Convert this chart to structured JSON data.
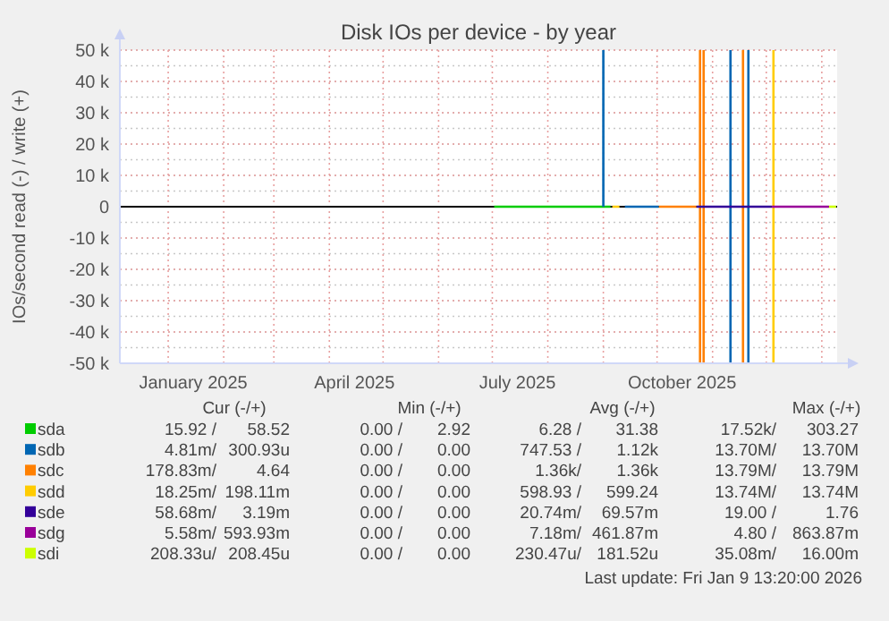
{
  "chart_data": {
    "type": "line",
    "title": "Disk IOs per device - by year",
    "ylabel": "IOs/second read (-) / write (+)",
    "xlim": [
      "2024-12-05",
      "2026-01-09T13:20"
    ],
    "xticks": [
      {
        "value": "2025-01-15",
        "label": "January 2025"
      },
      {
        "value": "2025-04-15",
        "label": "April 2025"
      },
      {
        "value": "2025-07-15",
        "label": "July 2025"
      },
      {
        "value": "2025-10-15",
        "label": "October 2025"
      }
    ],
    "ylim": [
      -50000,
      50000
    ],
    "yticks": [
      {
        "value": -50000,
        "label": "-50 k"
      },
      {
        "value": -40000,
        "label": "-40 k"
      },
      {
        "value": -30000,
        "label": "-30 k"
      },
      {
        "value": -20000,
        "label": "-20 k"
      },
      {
        "value": -10000,
        "label": "-10 k"
      },
      0,
      {
        "value": 10000,
        "label": "10 k"
      },
      {
        "value": 20000,
        "label": "20 k"
      },
      {
        "value": 30000,
        "label": "30 k"
      },
      {
        "value": 40000,
        "label": "40 k"
      },
      {
        "value": 50000,
        "label": "50 k"
      }
    ],
    "grid": true,
    "legend": "bottom",
    "marker": "none",
    "line_style": "solid",
    "series": [
      {
        "name": "sda",
        "color": "#00cc00",
        "x": [
          "2025-07-02",
          "2025-09-05"
        ],
        "values": [
          0,
          0
        ]
      },
      {
        "name": "sdb",
        "color": "#0066b3",
        "x": [
          "2025-09-01",
          "2025-09-01",
          "2025-09-05",
          "2025-09-13",
          "2025-10-02",
          "2025-10-05",
          "2025-11-11",
          "2025-11-11",
          "2025-11-15",
          "2025-11-21",
          "2025-11-21"
        ],
        "values": [
          0,
          50000,
          null,
          0,
          0,
          null,
          50000,
          -50000,
          null,
          50000,
          -50000
        ]
      },
      {
        "name": "sdc",
        "color": "#ff8000",
        "x": [
          "2025-10-02",
          "2025-10-23",
          "2025-10-24",
          "2025-10-25",
          "2025-10-25",
          "2025-10-26",
          "2025-10-27",
          "2025-10-27",
          "2025-11-01",
          "2025-11-18",
          "2025-11-18"
        ],
        "values": [
          0,
          0,
          null,
          50000,
          -50000,
          null,
          50000,
          -50000,
          null,
          50000,
          -50000
        ]
      },
      {
        "name": "sdd",
        "color": "#ffcc00",
        "x": [
          "2025-09-06",
          "2025-09-10",
          "2025-09-20",
          "2025-12-05",
          "2025-12-05"
        ],
        "values": [
          0,
          0,
          null,
          50000,
          -50000
        ]
      },
      {
        "name": "sde",
        "color": "#330099",
        "x": [
          "2025-10-23",
          "2025-12-04"
        ],
        "values": [
          0,
          0
        ]
      },
      {
        "name": "sdg",
        "color": "#990099",
        "x": [
          "2025-12-04",
          "2026-01-05"
        ],
        "values": [
          0,
          0
        ]
      },
      {
        "name": "sdi",
        "color": "#ccff00",
        "x": [
          "2026-01-05",
          "2026-01-09"
        ],
        "values": [
          0,
          0
        ]
      }
    ],
    "annotations": [
      "Cur (-/+)",
      "Min (-/+)",
      "Avg (-/+)",
      "Max (-/+)",
      "15.92 /",
      "58.52",
      "0.00 /",
      "2.92",
      "6.28 /",
      "31.38",
      "17.52k/",
      "303.27",
      "4.81m/",
      "300.93u",
      "0.00 /",
      "0.00",
      "747.53 /",
      "1.12k",
      "13.70M/",
      "13.70M",
      "178.83m/",
      "4.64",
      "0.00 /",
      "0.00",
      "1.36k/",
      "1.36k",
      "13.79M/",
      "13.79M",
      "18.25m/",
      "198.11m",
      "0.00 /",
      "0.00",
      "598.93 /",
      "599.24",
      "13.74M/",
      "13.74M",
      "58.68m/",
      "3.19m",
      "0.00 /",
      "0.00",
      "20.74m/",
      "69.57m",
      "19.00 /",
      "1.76",
      "5.58m/",
      "593.93m",
      "0.00 /",
      "0.00",
      "7.18m/",
      "461.87m",
      "4.80 /",
      "863.87m",
      "208.33u/",
      "208.45u",
      "0.00 /",
      "0.00",
      "230.47u/",
      "181.52u",
      "35.08m/",
      "16.00m",
      "Last update: Fri Jan  9 13:20:00 2026"
    ]
  }
}
